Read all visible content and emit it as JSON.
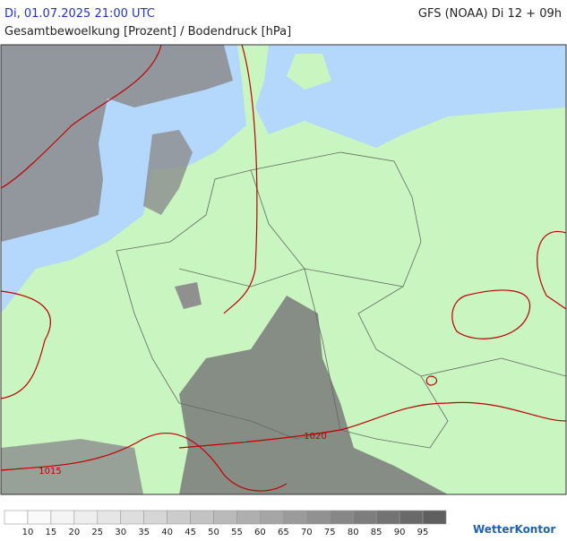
{
  "header": {
    "datetime": "Di, 01.07.2025 21:00 UTC",
    "model": "GFS (NOAA) Di 12 + 09h",
    "subtitle": "Gesamtbewoelkung [Prozent] / Bodendruck [hPa]"
  },
  "isobars": [
    1020,
    1015
  ],
  "legend": {
    "labels": [
      10,
      15,
      20,
      25,
      30,
      35,
      40,
      45,
      50,
      55,
      60,
      65,
      70,
      75,
      80,
      85,
      90,
      95
    ],
    "colors": [
      "#ffffff",
      "#fafafa",
      "#f4f4f4",
      "#eeeeee",
      "#e6e6e6",
      "#dedede",
      "#d6d6d6",
      "#cccccc",
      "#c3c3c3",
      "#b9b9b9",
      "#afafaf",
      "#a5a5a5",
      "#9b9b9b",
      "#919191",
      "#878787",
      "#7d7d7d",
      "#737373",
      "#696969",
      "#5f5f5f"
    ]
  },
  "logo": "WetterKontor"
}
